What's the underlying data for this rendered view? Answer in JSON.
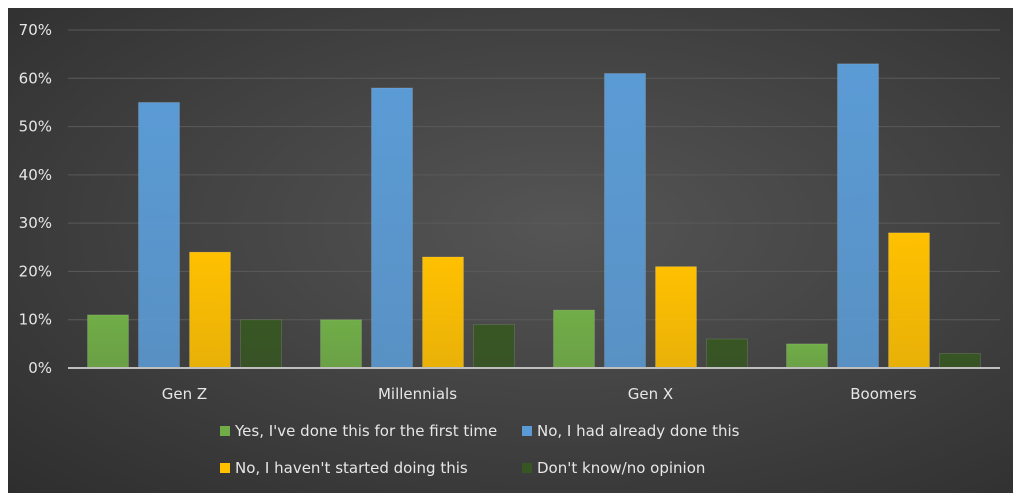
{
  "chart_data": {
    "type": "bar",
    "categories": [
      "Gen Z",
      "Millennials",
      "Gen X",
      "Boomers"
    ],
    "series": [
      {
        "name": "Yes, I've done this for the first time",
        "values": [
          11,
          10,
          12,
          5
        ],
        "color": "#70ad47"
      },
      {
        "name": "No, I had already done this",
        "values": [
          55,
          58,
          61,
          63
        ],
        "color": "#5b9bd5"
      },
      {
        "name": "No, I haven't started doing this",
        "values": [
          24,
          23,
          21,
          28
        ],
        "color": "#ffc000"
      },
      {
        "name": "Don't know/no opinion",
        "values": [
          10,
          9,
          6,
          3
        ],
        "color": "#375623"
      }
    ],
    "ylim": [
      0,
      70
    ],
    "yticks": [
      "0%",
      "10%",
      "20%",
      "30%",
      "40%",
      "50%",
      "60%",
      "70%"
    ],
    "ytick_values": [
      0,
      10,
      20,
      30,
      40,
      50,
      60,
      70
    ],
    "grid": true,
    "legend_position": "bottom",
    "title": "",
    "xlabel": "",
    "ylabel": ""
  }
}
